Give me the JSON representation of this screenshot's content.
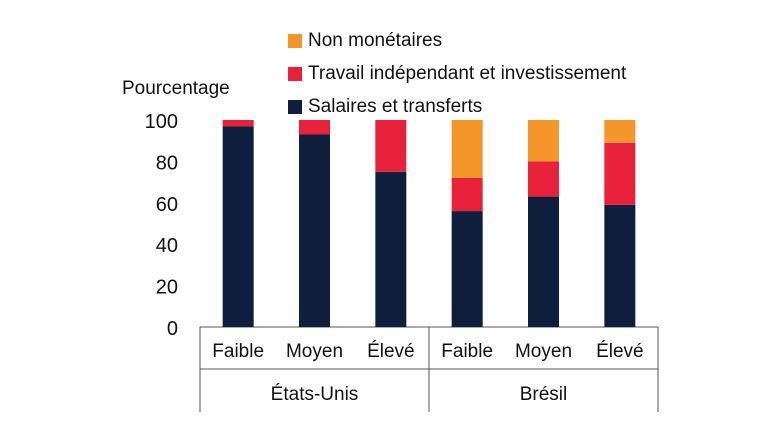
{
  "chart_data": {
    "type": "bar",
    "stacked": true,
    "ylabel": "Pourcentage",
    "ylim": [
      0,
      100
    ],
    "yticks": [
      0,
      20,
      40,
      60,
      80,
      100
    ],
    "categories": [
      "Faible",
      "Moyen",
      "Élevé",
      "Faible",
      "Moyen",
      "Élevé"
    ],
    "groups": [
      {
        "label": "États-Unis",
        "categories": [
          "Faible",
          "Moyen",
          "Élevé"
        ]
      },
      {
        "label": "Brésil",
        "categories": [
          "Faible",
          "Moyen",
          "Élevé"
        ]
      }
    ],
    "series": [
      {
        "name": "Salaires et transferts",
        "color": "#0d1f3c",
        "values": [
          97,
          93,
          75,
          56,
          63,
          59
        ]
      },
      {
        "name": "Travail indépendant et investissement",
        "color": "#e8203a",
        "values": [
          3,
          7,
          25,
          16,
          17,
          30
        ]
      },
      {
        "name": "Non monétaires",
        "color": "#f5962a",
        "values": [
          0,
          0,
          0,
          28,
          20,
          11
        ]
      }
    ],
    "legend_order": [
      "Non monétaires",
      "Travail indépendant et investissement",
      "Salaires et transferts"
    ],
    "legend_position": "top",
    "grid": false
  }
}
